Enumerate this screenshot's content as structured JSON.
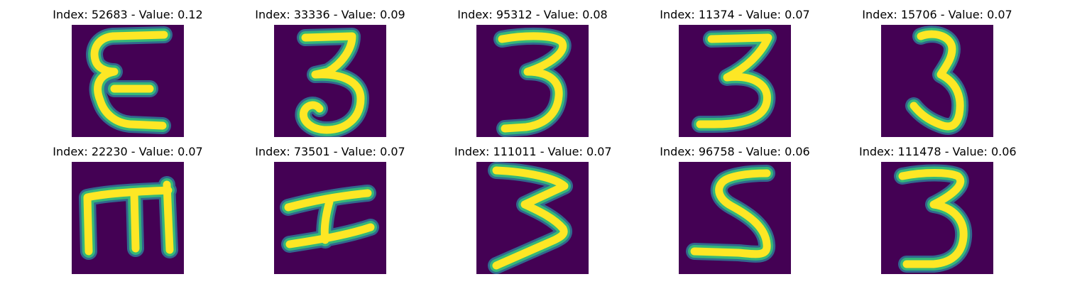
{
  "colors": {
    "background": "#440154",
    "edge_dark": "#31688e",
    "edge_mid": "#35b779",
    "stroke": "#fde725"
  },
  "images": [
    {
      "title": "Index: 52683 - Value: 0.12",
      "glyph": "E-curly"
    },
    {
      "title": "Index: 33336 - Value: 0.09",
      "glyph": "3"
    },
    {
      "title": "Index: 95312 - Value: 0.08",
      "glyph": "3"
    },
    {
      "title": "Index: 11374 - Value: 0.07",
      "glyph": "3"
    },
    {
      "title": "Index: 15706 - Value: 0.07",
      "glyph": "3"
    },
    {
      "title": "Index: 22230 - Value: 0.07",
      "glyph": "m"
    },
    {
      "title": "Index: 73501 - Value: 0.07",
      "glyph": "H-rotated"
    },
    {
      "title": "Index: 111011 - Value: 0.07",
      "glyph": "3-zigzag"
    },
    {
      "title": "Index: 96758 - Value: 0.06",
      "glyph": "5"
    },
    {
      "title": "Index: 111478 - Value: 0.06",
      "glyph": "3"
    }
  ]
}
